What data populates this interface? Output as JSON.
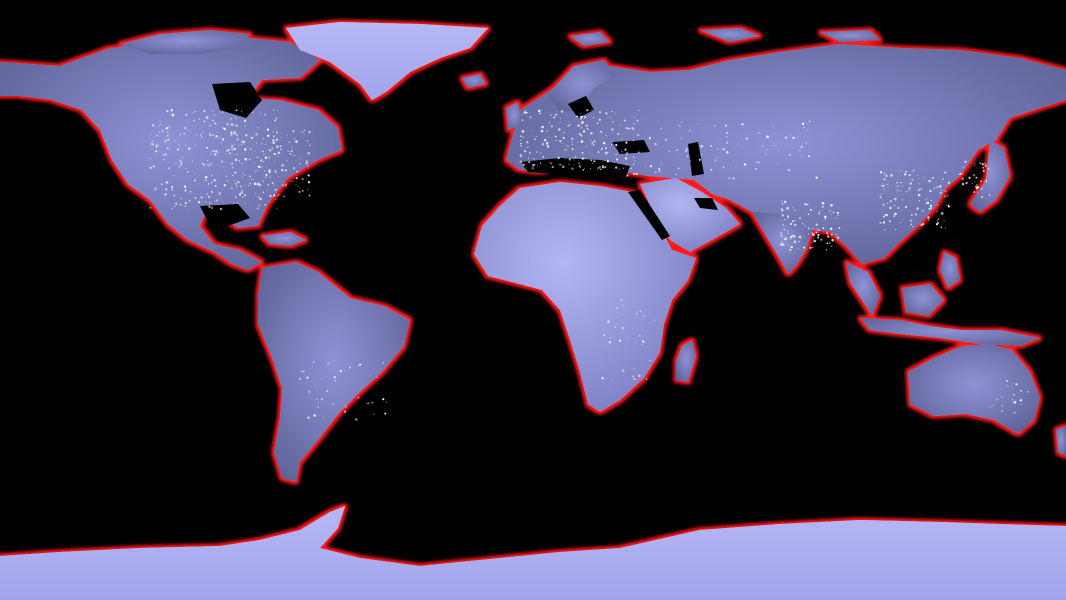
{
  "map": {
    "projection": "equirectangular",
    "background": "#000000",
    "land_color": "#7a7ec0",
    "land_light_color": "#a9acee",
    "ice_color": "#aeb0f2",
    "coastline_flood_color": "#ff1a1a",
    "city_light_color": "#ffffff",
    "regions": [
      "north-america",
      "greenland",
      "south-america",
      "europe-asia",
      "africa",
      "arabia",
      "india",
      "madagascar",
      "southeast-asia",
      "japan",
      "australia",
      "antarctica"
    ]
  }
}
